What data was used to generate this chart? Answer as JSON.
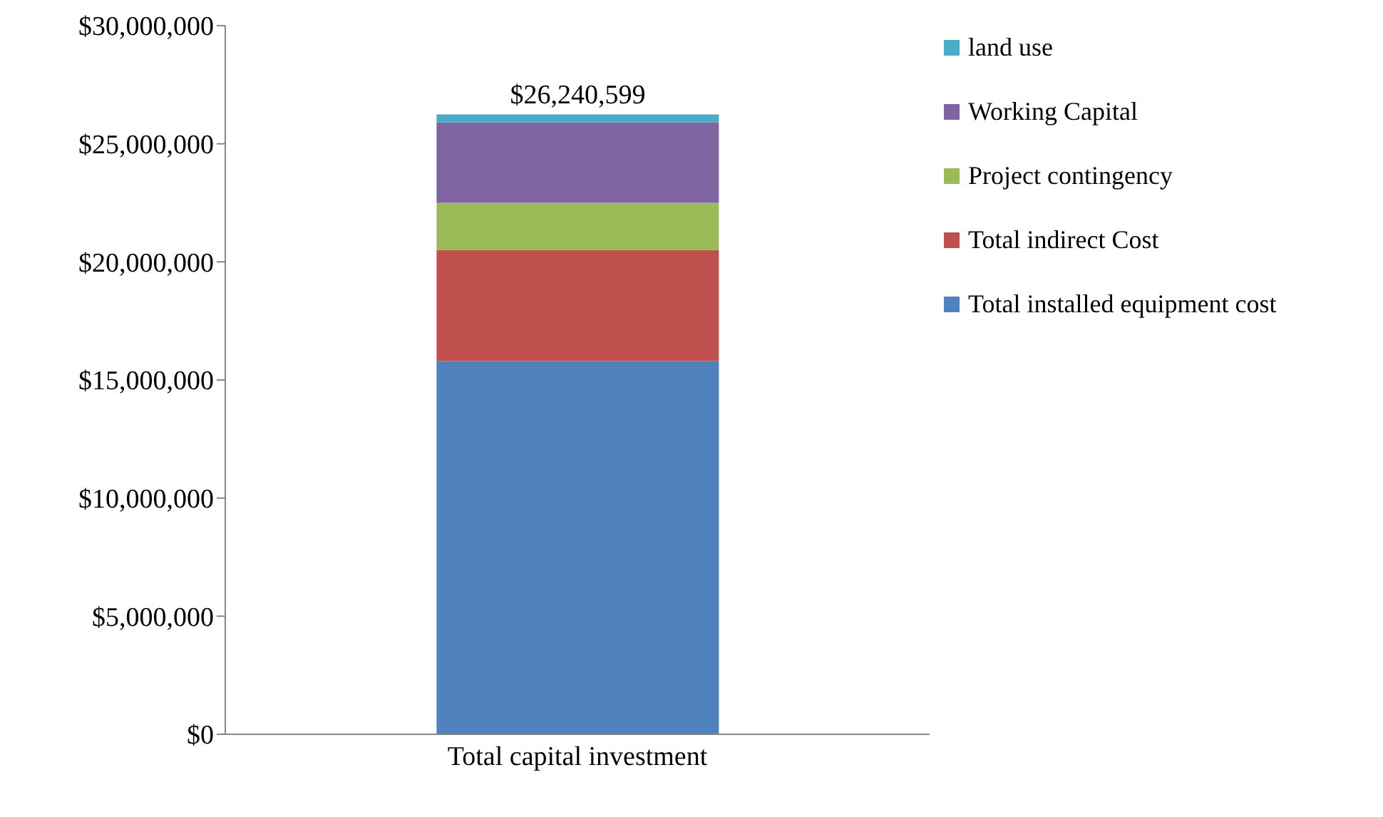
{
  "chart_data": {
    "type": "bar",
    "stacked": true,
    "categories": [
      "Total capital investment"
    ],
    "series": [
      {
        "name": "Total installed equipment cost",
        "color": "#4f81bd",
        "values": [
          15800000
        ]
      },
      {
        "name": "Total indirect Cost",
        "color": "#c0504d",
        "values": [
          4700000
        ]
      },
      {
        "name": "Project contingency",
        "color": "#9bbb59",
        "values": [
          2000000
        ]
      },
      {
        "name": "Working Capital",
        "color": "#8064a2",
        "values": [
          3400000
        ]
      },
      {
        "name": "land use",
        "color": "#4bacc6",
        "values": [
          340599
        ]
      }
    ],
    "totals": [
      "$26,240,599"
    ],
    "ylim": [
      0,
      30000000
    ],
    "yticks": [
      {
        "value": 0,
        "label": "$0"
      },
      {
        "value": 5000000,
        "label": "$5,000,000"
      },
      {
        "value": 10000000,
        "label": "$10,000,000"
      },
      {
        "value": 15000000,
        "label": "$15,000,000"
      },
      {
        "value": 20000000,
        "label": "$20,000,000"
      },
      {
        "value": 25000000,
        "label": "$25,000,000"
      },
      {
        "value": 30000000,
        "label": "$30,000,000"
      }
    ],
    "grid": false,
    "legend": "right"
  }
}
